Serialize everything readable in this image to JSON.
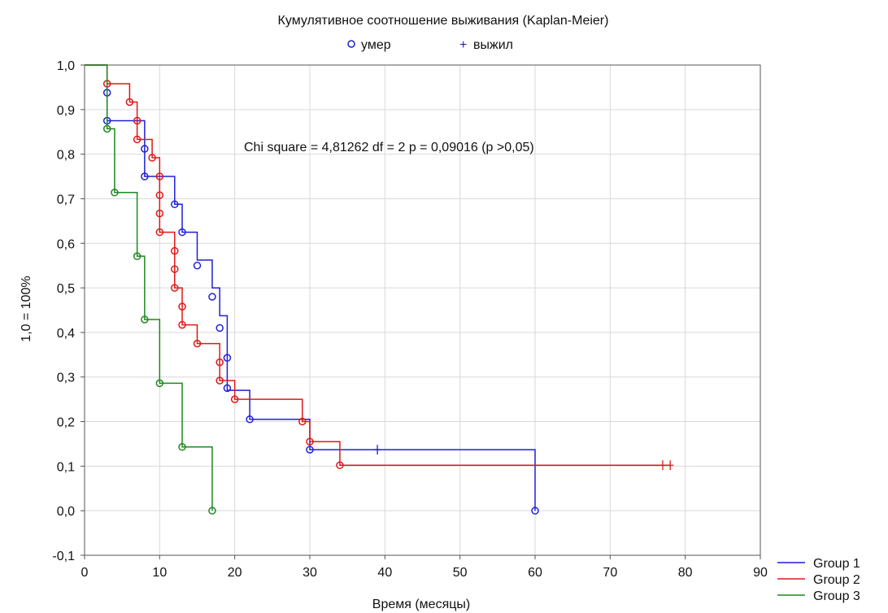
{
  "chart_data": {
    "type": "line",
    "title": "Кумулятивное соотношение выживания (Kaplan-Meier)",
    "marker_legend": [
      {
        "symbol": "o",
        "label": "умер"
      },
      {
        "symbol": "+",
        "label": "выжил"
      }
    ],
    "annotation": "Chi square = 4,81262 df = 2 p = 0,09016 (p >0,05)",
    "xlabel": "Время (месяцы)",
    "ylabel": "1,0 = 100%",
    "xlim": [
      0,
      90
    ],
    "ylim": [
      -0.1,
      1.0
    ],
    "x_ticks": [
      "0",
      "10",
      "20",
      "30",
      "40",
      "50",
      "60",
      "70",
      "80",
      "90"
    ],
    "y_ticks": [
      "-0,1",
      "0,0",
      "0,1",
      "0,2",
      "0,3",
      "0,4",
      "0,5",
      "0,6",
      "0,7",
      "0,8",
      "0,9",
      "1,0"
    ],
    "grid": true,
    "legend_position": "bottom-right",
    "series": [
      {
        "name": "Group  1",
        "color": "#1f1fd6",
        "steps": [
          [
            0,
            1.0
          ],
          [
            3,
            0.875
          ],
          [
            8,
            0.75
          ],
          [
            12,
            0.6875
          ],
          [
            13,
            0.625
          ],
          [
            15,
            0.5625
          ],
          [
            17,
            0.5
          ],
          [
            18,
            0.4375
          ],
          [
            19,
            0.375
          ],
          [
            19,
            0.3125
          ],
          [
            19,
            0.27
          ],
          [
            22,
            0.205
          ],
          [
            30,
            0.137
          ],
          [
            60,
            0.0
          ]
        ],
        "deaths": [
          [
            3,
            0.938
          ],
          [
            3,
            0.875
          ],
          [
            8,
            0.812
          ],
          [
            8,
            0.75
          ],
          [
            12,
            0.6875
          ],
          [
            13,
            0.625
          ],
          [
            15,
            0.55
          ],
          [
            17,
            0.48
          ],
          [
            18,
            0.41
          ],
          [
            19,
            0.343
          ],
          [
            19,
            0.275
          ],
          [
            22,
            0.205
          ],
          [
            30,
            0.137
          ],
          [
            60,
            0.0
          ]
        ],
        "censored": [
          [
            39,
            0.137
          ]
        ],
        "end_x": 60
      },
      {
        "name": "Group  2",
        "color": "#e01818",
        "steps": [
          [
            0,
            1.0
          ],
          [
            3,
            0.958
          ],
          [
            6,
            0.917
          ],
          [
            7,
            0.875
          ],
          [
            7,
            0.833
          ],
          [
            9,
            0.792
          ],
          [
            10,
            0.75
          ],
          [
            10,
            0.708
          ],
          [
            10,
            0.667
          ],
          [
            10,
            0.625
          ],
          [
            12,
            0.583
          ],
          [
            12,
            0.542
          ],
          [
            12,
            0.5
          ],
          [
            13,
            0.458
          ],
          [
            13,
            0.417
          ],
          [
            15,
            0.375
          ],
          [
            18,
            0.333
          ],
          [
            18,
            0.292
          ],
          [
            20,
            0.25
          ],
          [
            29,
            0.2
          ],
          [
            30,
            0.155
          ],
          [
            34,
            0.102
          ]
        ],
        "deaths": [
          [
            3,
            0.958
          ],
          [
            6,
            0.917
          ],
          [
            7,
            0.875
          ],
          [
            7,
            0.833
          ],
          [
            9,
            0.792
          ],
          [
            10,
            0.75
          ],
          [
            10,
            0.708
          ],
          [
            10,
            0.667
          ],
          [
            10,
            0.625
          ],
          [
            12,
            0.583
          ],
          [
            12,
            0.542
          ],
          [
            12,
            0.5
          ],
          [
            13,
            0.458
          ],
          [
            13,
            0.417
          ],
          [
            15,
            0.375
          ],
          [
            18,
            0.333
          ],
          [
            18,
            0.292
          ],
          [
            20,
            0.25
          ],
          [
            29,
            0.2
          ],
          [
            30,
            0.155
          ],
          [
            34,
            0.102
          ]
        ],
        "censored": [
          [
            77,
            0.102
          ],
          [
            78,
            0.102
          ]
        ],
        "end_x": 78
      },
      {
        "name": "Group  3",
        "color": "#1d8a1d",
        "steps": [
          [
            0,
            1.0
          ],
          [
            3,
            0.857
          ],
          [
            4,
            0.714
          ],
          [
            7,
            0.571
          ],
          [
            8,
            0.429
          ],
          [
            10,
            0.286
          ],
          [
            13,
            0.143
          ],
          [
            17,
            0.0
          ]
        ],
        "deaths": [
          [
            3,
            0.857
          ],
          [
            4,
            0.714
          ],
          [
            7,
            0.571
          ],
          [
            8,
            0.429
          ],
          [
            10,
            0.286
          ],
          [
            13,
            0.143
          ],
          [
            17,
            0.0
          ]
        ],
        "censored": [],
        "end_x": 17
      }
    ]
  }
}
